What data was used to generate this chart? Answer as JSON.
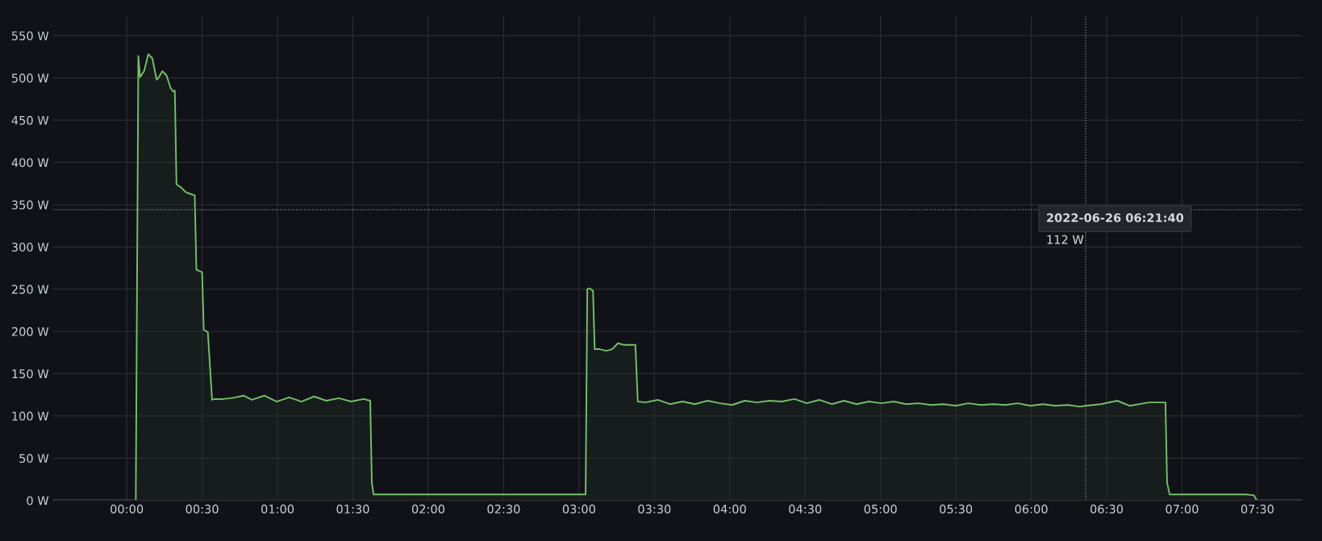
{
  "chart_data": {
    "type": "area",
    "color": "#73bf69",
    "x": [
      -0.49,
      0.06,
      0.077,
      0.088,
      0.115,
      0.143,
      0.17,
      0.198,
      0.214,
      0.236,
      0.264,
      0.291,
      0.308,
      0.319,
      0.33,
      0.363,
      0.39,
      0.418,
      0.451,
      0.462,
      0.5,
      0.511,
      0.538,
      0.566,
      0.582,
      0.637,
      0.692,
      0.775,
      0.83,
      0.912,
      0.995,
      1.077,
      1.159,
      1.242,
      1.324,
      1.407,
      1.489,
      1.571,
      1.615,
      1.626,
      1.637,
      1.929,
      2.478,
      3.044,
      3.055,
      3.071,
      3.093,
      3.104,
      3.137,
      3.181,
      3.22,
      3.258,
      3.302,
      3.374,
      3.39,
      3.44,
      3.522,
      3.604,
      3.687,
      3.769,
      3.852,
      3.934,
      4.016,
      4.099,
      4.181,
      4.264,
      4.346,
      4.429,
      4.511,
      4.593,
      4.676,
      4.758,
      4.841,
      4.923,
      5.005,
      5.088,
      5.17,
      5.253,
      5.335,
      5.418,
      5.5,
      5.582,
      5.665,
      5.747,
      5.83,
      5.912,
      5.995,
      6.077,
      6.159,
      6.242,
      6.324,
      6.361,
      6.462,
      6.571,
      6.654,
      6.78,
      6.89,
      6.901,
      6.918,
      7.148,
      7.423,
      7.478,
      7.495,
      7.797
    ],
    "values": [
      0,
      0,
      526,
      501,
      508,
      528,
      523,
      498,
      501,
      508,
      503,
      488,
      484,
      485,
      374,
      370,
      365,
      363,
      361,
      273,
      270,
      202,
      199,
      119,
      120,
      120,
      121,
      124,
      119,
      124,
      117,
      122,
      117,
      123,
      118,
      121,
      117,
      120,
      118,
      21,
      7,
      7,
      7,
      7,
      250,
      251,
      248,
      179,
      179,
      177,
      179,
      186,
      184,
      184,
      117,
      116,
      119,
      114,
      117,
      114,
      118,
      115,
      113,
      118,
      116,
      118,
      117,
      120,
      115,
      119,
      114,
      118,
      114,
      117,
      115,
      117,
      114,
      115,
      113,
      114,
      112,
      115,
      113,
      114,
      113,
      115,
      112,
      114,
      112,
      113,
      111,
      112,
      114,
      118,
      112,
      116,
      116,
      21,
      7,
      7,
      7,
      6,
      0,
      0
    ],
    "xlim": [
      -0.49,
      7.797
    ],
    "xticks": [
      {
        "value": 0,
        "label": "00:00"
      },
      {
        "value": 0.5,
        "label": "00:30"
      },
      {
        "value": 1,
        "label": "01:00"
      },
      {
        "value": 1.5,
        "label": "01:30"
      },
      {
        "value": 2,
        "label": "02:00"
      },
      {
        "value": 2.5,
        "label": "02:30"
      },
      {
        "value": 3,
        "label": "03:00"
      },
      {
        "value": 3.5,
        "label": "03:30"
      },
      {
        "value": 4,
        "label": "04:00"
      },
      {
        "value": 4.5,
        "label": "04:30"
      },
      {
        "value": 5,
        "label": "05:00"
      },
      {
        "value": 5.5,
        "label": "05:30"
      },
      {
        "value": 6,
        "label": "06:00"
      },
      {
        "value": 6.5,
        "label": "06:30"
      },
      {
        "value": 7,
        "label": "07:00"
      },
      {
        "value": 7.5,
        "label": "07:30"
      }
    ],
    "ylim": [
      0,
      573
    ],
    "yticks": [
      {
        "value": 0,
        "label": "0 W"
      },
      {
        "value": 50,
        "label": "50 W"
      },
      {
        "value": 100,
        "label": "100 W"
      },
      {
        "value": 150,
        "label": "150 W"
      },
      {
        "value": 200,
        "label": "200 W"
      },
      {
        "value": 250,
        "label": "250 W"
      },
      {
        "value": 300,
        "label": "300 W"
      },
      {
        "value": 350,
        "label": "350 W"
      },
      {
        "value": 400,
        "label": "400 W"
      },
      {
        "value": 450,
        "label": "450 W"
      },
      {
        "value": 500,
        "label": "500 W"
      },
      {
        "value": 550,
        "label": "550 W"
      }
    ],
    "grid": true,
    "ref_lines": [
      {
        "axis": "x",
        "value": 6.361,
        "color": "#8e8e8e",
        "line_style": "dotted"
      },
      {
        "axis": "y",
        "value": 344,
        "color": "#8e8e8e",
        "line_style": "dotted"
      }
    ],
    "annotations": [
      "2022-06-26 06:21:40",
      "112 W"
    ]
  }
}
